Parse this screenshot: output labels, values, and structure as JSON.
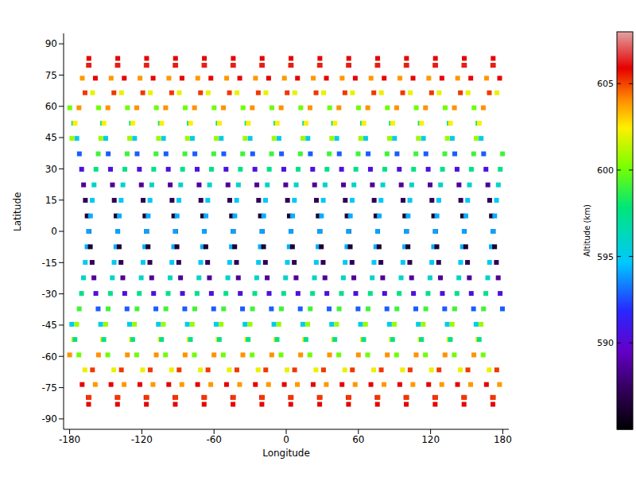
{
  "chart_data": {
    "type": "scatter",
    "xlabel": "Longitude",
    "ylabel": "Latitude",
    "marker": "square",
    "xlim": [
      -185,
      185
    ],
    "xticks": [
      -180,
      -120,
      -60,
      0,
      60,
      120,
      180
    ],
    "ylim": [
      -95,
      95
    ],
    "yticks": [
      -90,
      -75,
      -60,
      -45,
      -30,
      -15,
      0,
      15,
      30,
      45,
      60,
      75,
      90
    ],
    "colorbar": {
      "label": "Altitude (km)",
      "range": [
        585,
        608
      ],
      "ticks": [
        590,
        595,
        600,
        605
      ]
    },
    "samples": [
      {
        "latitude": 0,
        "altitude": 586,
        "longitudes": [
          -164,
          -140,
          -116,
          -92,
          -68,
          -44,
          -20,
          4,
          28,
          52,
          76,
          100,
          124,
          148,
          172
        ]
      },
      {
        "latitude": 7.4,
        "altitude": 586.3,
        "longitudes": [
          -165.4,
          -141.4,
          -117.4,
          -93.4,
          -69.4,
          -45.4,
          -21.4,
          2.6,
          26.6,
          50.6,
          74.6,
          98.6,
          122.6,
          146.6,
          170.6
        ]
      },
      {
        "latitude": 14.9,
        "altitude": 587.2,
        "longitudes": [
          -166.9,
          -142.9,
          -118.9,
          -94.9,
          -70.9,
          -46.9,
          -22.9,
          1.1,
          25.1,
          49.1,
          73.1,
          97.1,
          121.1,
          145.1,
          169.1
        ]
      },
      {
        "latitude": 22.3,
        "altitude": 588.6,
        "longitudes": [
          -168.4,
          -144.4,
          -120.4,
          -96.4,
          -72.4,
          -48.4,
          -24.4,
          -0.4,
          23.6,
          47.6,
          71.6,
          95.6,
          119.6,
          143.6,
          167.6
        ]
      },
      {
        "latitude": 29.8,
        "altitude": 590.5,
        "longitudes": [
          -170,
          -146,
          -122,
          -98,
          -74,
          -50,
          -26,
          -2,
          22,
          46,
          70,
          94,
          118,
          142,
          166
        ]
      },
      {
        "latitude": 37.2,
        "altitude": 592.8,
        "longitudes": [
          -171.9,
          -147.9,
          -123.9,
          -99.9,
          -75.9,
          -51.9,
          -27.9,
          -3.9,
          20.1,
          44.1,
          68.1,
          92.1,
          116.1,
          140.1,
          164.1
        ]
      },
      {
        "latitude": 44.6,
        "altitude": 595.2,
        "longitudes": [
          -174,
          -150,
          -126,
          -102,
          -78,
          -54,
          -30,
          -6,
          18,
          42,
          66,
          90,
          114,
          138,
          162
        ]
      },
      {
        "latitude": 51.9,
        "altitude": 597.6,
        "longitudes": [
          -176.6,
          -152.6,
          -128.6,
          -104.6,
          -80.6,
          -56.6,
          -32.6,
          -8.6,
          15.4,
          39.4,
          63.4,
          87.4,
          111.4,
          135.4,
          159.4
        ]
      },
      {
        "latitude": 59.3,
        "altitude": 600,
        "longitudes": [
          -179.9,
          -155.9,
          -131.9,
          -107.9,
          -83.9,
          -59.9,
          -35.9,
          -11.9,
          12.1,
          36.1,
          60.1,
          84.1,
          108.1,
          132.1,
          156.1
        ]
      },
      {
        "latitude": 66.5,
        "altitude": 602.1,
        "longitudes": [
          -160.9,
          -136.9,
          -112.9,
          -88.9,
          -64.9,
          -40.9,
          -16.9,
          7.1,
          31.1,
          55.1,
          79.1,
          103.1,
          127.1,
          151.1,
          175.1
        ]
      },
      {
        "latitude": 73.5,
        "altitude": 603.9,
        "longitudes": [
          -169.5,
          -145.5,
          -121.5,
          -97.5,
          -73.5,
          -49.5,
          -25.5,
          -1.5,
          22.5,
          46.5,
          70.5,
          94.5,
          118.5,
          142.5,
          166.5
        ]
      },
      {
        "latitude": 79.7,
        "altitude": 605.2,
        "longitudes": [
          -164.4,
          -140.4,
          -116.4,
          -92.4,
          -68.4,
          -44.4,
          -20.4,
          3.6,
          27.6,
          51.6,
          75.6,
          99.6,
          123.6,
          147.6,
          171.6
        ]
      },
      {
        "latitude": 83,
        "altitude": 606,
        "longitudes": [
          -164,
          -140,
          -116,
          -92,
          -68,
          -44,
          -20,
          4,
          28,
          52,
          76,
          100,
          124,
          148,
          172
        ]
      },
      {
        "latitude": 79.7,
        "altitude": 606.3,
        "longitudes": [
          -163.8,
          -139.8,
          -115.8,
          -91.8,
          -67.8,
          -43.8,
          -19.8,
          4.2,
          28.2,
          52.2,
          76.2,
          100.2,
          124.2,
          148.2,
          172.2
        ]
      },
      {
        "latitude": 73.5,
        "altitude": 606,
        "longitudes": [
          -158.6,
          -134.6,
          -110.6,
          -86.6,
          -62.6,
          -38.6,
          -14.6,
          9.4,
          33.4,
          57.4,
          81.4,
          105.4,
          129.4,
          153.4,
          177.4
        ]
      },
      {
        "latitude": 66.5,
        "altitude": 605.2,
        "longitudes": [
          -167.2,
          -143.2,
          -119.2,
          -95.2,
          -71.2,
          -47.2,
          -23.2,
          0.8,
          24.8,
          48.8,
          72.8,
          96.8,
          120.8,
          144.8,
          168.8
        ]
      },
      {
        "latitude": 59.3,
        "altitude": 604,
        "longitudes": [
          -172.2,
          -148.2,
          -124.2,
          -100.2,
          -76.2,
          -52.2,
          -28.2,
          -4.2,
          19.8,
          43.8,
          67.8,
          91.8,
          115.8,
          139.8,
          163.8
        ]
      },
      {
        "latitude": 51.9,
        "altitude": 602.5,
        "longitudes": [
          -175.5,
          -151.5,
          -127.5,
          -103.5,
          -79.5,
          -55.5,
          -31.5,
          -7.5,
          16.5,
          40.5,
          64.5,
          88.5,
          112.5,
          136.5,
          160.5
        ]
      },
      {
        "latitude": 44.6,
        "altitude": 600.8,
        "longitudes": [
          -178.1,
          -154.1,
          -130.1,
          -106.1,
          -82.1,
          -58.1,
          -34.1,
          -10.1,
          13.9,
          37.9,
          61.9,
          85.9,
          109.9,
          133.9,
          157.9
        ]
      },
      {
        "latitude": 37.2,
        "altitude": 599.1,
        "longitudes": [
          -156.2,
          -132.2,
          -108.2,
          -84.2,
          -60.2,
          -36.2,
          -12.2,
          11.8,
          35.8,
          59.8,
          83.8,
          107.8,
          131.8,
          155.8,
          179.8
        ]
      },
      {
        "latitude": 29.8,
        "altitude": 597.5,
        "longitudes": [
          -158.1,
          -134.1,
          -110.1,
          -86.1,
          -62.1,
          -38.1,
          -14.1,
          9.9,
          33.9,
          57.9,
          81.9,
          105.9,
          129.9,
          153.9,
          177.9
        ]
      },
      {
        "latitude": 22.3,
        "altitude": 596,
        "longitudes": [
          -159.7,
          -135.7,
          -111.7,
          -87.7,
          -63.7,
          -39.7,
          -15.7,
          8.3,
          32.3,
          56.3,
          80.3,
          104.3,
          128.3,
          152.3,
          176.3
        ]
      },
      {
        "latitude": 14.9,
        "altitude": 594.9,
        "longitudes": [
          -161.2,
          -137.2,
          -113.2,
          -89.2,
          -65.2,
          -41.2,
          -17.2,
          6.8,
          30.8,
          54.8,
          78.8,
          102.8,
          126.8,
          150.8,
          174.8
        ]
      },
      {
        "latitude": 7.4,
        "altitude": 594.2,
        "longitudes": [
          -162.7,
          -138.7,
          -114.7,
          -90.7,
          -66.7,
          -42.7,
          -18.7,
          5.3,
          29.3,
          53.3,
          77.3,
          101.3,
          125.3,
          149.3,
          173.3
        ]
      },
      {
        "latitude": 0,
        "altitude": 594,
        "longitudes": [
          -164.1,
          -140.1,
          -116.1,
          -92.1,
          -68.1,
          -44.1,
          -20.1,
          3.9,
          27.9,
          51.9,
          75.9,
          99.9,
          123.9,
          147.9,
          171.9
        ]
      },
      {
        "latitude": -7.4,
        "altitude": 594.2,
        "longitudes": [
          -165.5,
          -141.5,
          -117.5,
          -93.5,
          -69.5,
          -45.5,
          -21.5,
          2.5,
          26.5,
          50.5,
          74.5,
          98.5,
          122.5,
          146.5,
          170.5
        ]
      },
      {
        "latitude": -14.9,
        "altitude": 594.9,
        "longitudes": [
          -167,
          -143,
          -119,
          -95,
          -71,
          -47,
          -23,
          1,
          25,
          49,
          73,
          97,
          121,
          145,
          169
        ]
      },
      {
        "latitude": -22.3,
        "altitude": 596,
        "longitudes": [
          -168.5,
          -144.5,
          -120.5,
          -96.5,
          -72.5,
          -48.5,
          -24.5,
          -0.5,
          23.5,
          47.5,
          71.5,
          95.5,
          119.5,
          143.5,
          167.5
        ]
      },
      {
        "latitude": -29.8,
        "altitude": 597.5,
        "longitudes": [
          -170.1,
          -146.1,
          -122.1,
          -98.1,
          -74.1,
          -50.1,
          -26.1,
          -2.1,
          21.9,
          45.9,
          69.9,
          93.9,
          117.9,
          141.9,
          165.9
        ]
      },
      {
        "latitude": -37.2,
        "altitude": 599.1,
        "longitudes": [
          -172,
          -148,
          -124,
          -100,
          -76,
          -52,
          -28,
          -4,
          20,
          44,
          68,
          92,
          116,
          140,
          164
        ]
      },
      {
        "latitude": -44.6,
        "altitude": 600.8,
        "longitudes": [
          -174.1,
          -150.1,
          -126.1,
          -102.1,
          -78.1,
          -54.1,
          -30.1,
          -6.1,
          17.9,
          41.9,
          65.9,
          89.9,
          113.9,
          137.9,
          161.9
        ]
      },
      {
        "latitude": -51.9,
        "altitude": 602.5,
        "longitudes": [
          -176.7,
          -152.7,
          -128.7,
          -104.7,
          -80.7,
          -56.7,
          -32.7,
          -8.7,
          15.3,
          39.3,
          63.3,
          87.3,
          111.3,
          135.3,
          159.3
        ]
      },
      {
        "latitude": -59.3,
        "altitude": 604,
        "longitudes": [
          -180,
          -156,
          -132,
          -108,
          -84,
          -60,
          -36,
          -12,
          12,
          36,
          60,
          84,
          108,
          132,
          156
        ]
      },
      {
        "latitude": -66.5,
        "altitude": 605.2,
        "longitudes": [
          -161,
          -137,
          -113,
          -89,
          -65,
          -41,
          -17,
          7,
          31,
          55,
          79,
          103,
          127,
          151,
          175
        ]
      },
      {
        "latitude": -73.5,
        "altitude": 606,
        "longitudes": [
          -169.6,
          -145.6,
          -121.6,
          -97.6,
          -73.6,
          -49.6,
          -25.6,
          -1.6,
          22.4,
          46.4,
          70.4,
          94.4,
          118.4,
          142.4,
          166.4
        ]
      },
      {
        "latitude": -79.7,
        "altitude": 606.3,
        "longitudes": [
          -164.5,
          -140.5,
          -116.5,
          -92.5,
          -68.5,
          -44.5,
          -20.5,
          3.5,
          27.5,
          51.5,
          75.5,
          99.5,
          123.5,
          147.5,
          171.5
        ]
      },
      {
        "latitude": -83,
        "altitude": 606,
        "longitudes": [
          -164.2,
          -140.2,
          -116.2,
          -92.2,
          -68.2,
          -44.2,
          -20.2,
          3.8,
          27.8,
          51.8,
          75.8,
          99.8,
          123.8,
          147.8,
          171.8
        ]
      },
      {
        "latitude": -79.7,
        "altitude": 605.2,
        "longitudes": [
          -163.8,
          -139.8,
          -115.8,
          -91.8,
          -67.8,
          -43.8,
          -19.8,
          4.2,
          28.2,
          52.2,
          76.2,
          100.2,
          124.2,
          148.2,
          172.2
        ]
      },
      {
        "latitude": -73.5,
        "altitude": 603.9,
        "longitudes": [
          -158.7,
          -134.7,
          -110.7,
          -86.7,
          -62.7,
          -38.7,
          -14.7,
          9.3,
          33.3,
          57.3,
          81.3,
          105.3,
          129.3,
          153.3,
          177.3
        ]
      },
      {
        "latitude": -66.5,
        "altitude": 602.1,
        "longitudes": [
          -167.3,
          -143.3,
          -119.3,
          -95.3,
          -71.3,
          -47.3,
          -23.3,
          0.7,
          24.7,
          48.7,
          72.7,
          96.7,
          120.7,
          144.7,
          168.7
        ]
      },
      {
        "latitude": -59.3,
        "altitude": 600,
        "longitudes": [
          -172.3,
          -148.3,
          -124.3,
          -100.3,
          -76.3,
          -52.3,
          -28.3,
          -4.3,
          19.7,
          43.7,
          67.7,
          91.7,
          115.7,
          139.7,
          163.7
        ]
      },
      {
        "latitude": -51.9,
        "altitude": 597.6,
        "longitudes": [
          -175.6,
          -151.6,
          -127.6,
          -103.6,
          -79.6,
          -55.6,
          -31.6,
          -7.6,
          16.4,
          40.4,
          64.4,
          88.4,
          112.4,
          136.4,
          160.4
        ]
      },
      {
        "latitude": -44.6,
        "altitude": 595.2,
        "longitudes": [
          -178.2,
          -154.2,
          -130.2,
          -106.2,
          -82.2,
          -58.2,
          -34.2,
          -10.2,
          13.8,
          37.8,
          61.8,
          85.8,
          109.8,
          133.8,
          157.8
        ]
      },
      {
        "latitude": -37.2,
        "altitude": 592.8,
        "longitudes": [
          -156.3,
          -132.3,
          -108.3,
          -84.3,
          -60.3,
          -36.3,
          -12.3,
          11.7,
          35.7,
          59.7,
          83.7,
          107.7,
          131.7,
          155.7,
          179.7
        ]
      },
      {
        "latitude": -29.8,
        "altitude": 590.5,
        "longitudes": [
          -158.2,
          -134.2,
          -110.2,
          -86.2,
          -62.2,
          -38.2,
          -14.2,
          9.8,
          33.8,
          57.8,
          81.8,
          105.8,
          129.8,
          153.8,
          177.8
        ]
      },
      {
        "latitude": -22.3,
        "altitude": 588.6,
        "longitudes": [
          -159.8,
          -135.8,
          -111.8,
          -87.8,
          -63.8,
          -39.8,
          -15.8,
          8.2,
          32.2,
          56.2,
          80.2,
          104.2,
          128.2,
          152.2,
          176.2
        ]
      },
      {
        "latitude": -14.9,
        "altitude": 587.2,
        "longitudes": [
          -161.3,
          -137.3,
          -113.3,
          -89.3,
          -65.3,
          -41.3,
          -17.3,
          6.7,
          30.7,
          54.7,
          78.7,
          102.7,
          126.7,
          150.7,
          174.7
        ]
      },
      {
        "latitude": -7.4,
        "altitude": 586.3,
        "longitudes": [
          -162.8,
          -138.8,
          -114.8,
          -90.8,
          -66.8,
          -42.8,
          -18.8,
          5.2,
          29.2,
          53.2,
          77.2,
          101.2,
          125.2,
          149.2,
          173.2
        ]
      }
    ]
  }
}
